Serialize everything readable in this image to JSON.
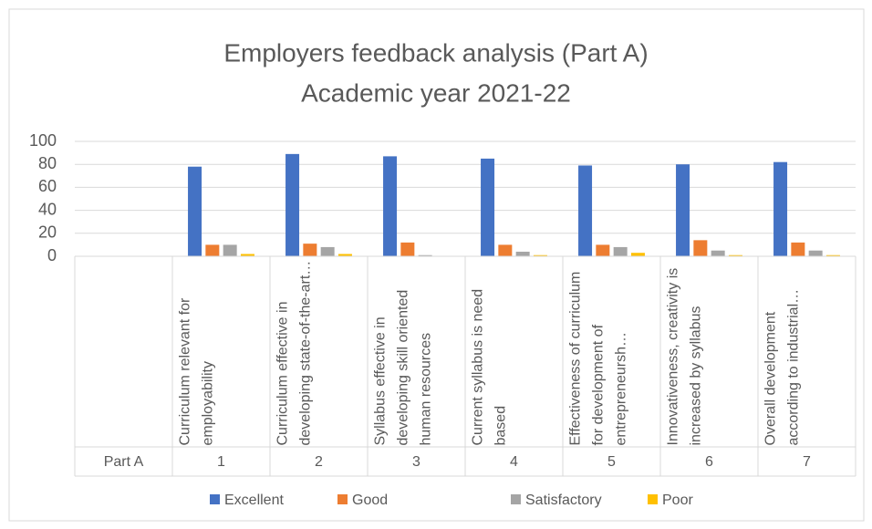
{
  "chart_data": {
    "type": "bar",
    "title": "Employers feedback analysis (Part A)",
    "subtitle": "Academic year 2021-22",
    "groups": [
      "Part A",
      "1",
      "2",
      "3",
      "4",
      "5",
      "6",
      "7"
    ],
    "categories": [
      null,
      "Curriculum relevant for employability",
      "Curriculum effective in developing state-of-the-art…",
      "Syllabus effective in developing skill oriented human resources",
      "Current syllabus is need based",
      "Effectiveness of curriculum for development of entrepreneursh…",
      "Innovativeness, creativity is increased by syllabus",
      "Overall development according to industrial…"
    ],
    "series": [
      {
        "name": "Excellent",
        "color": "#4472c4",
        "values": [
          null,
          78,
          89,
          87,
          85,
          79,
          80,
          82
        ]
      },
      {
        "name": "Good",
        "color": "#ed7d31",
        "values": [
          null,
          10,
          11,
          12,
          10,
          10,
          14,
          12
        ]
      },
      {
        "name": "Satisfactory",
        "color": "#a5a5a5",
        "values": [
          null,
          10,
          8,
          1,
          4,
          8,
          5,
          5
        ]
      },
      {
        "name": "Poor",
        "color": "#ffc000",
        "values": [
          null,
          2,
          2,
          0,
          1,
          3,
          1,
          1
        ]
      }
    ],
    "ylim": [
      0,
      100
    ],
    "yticks": [
      0,
      20,
      40,
      60,
      80,
      100
    ],
    "grid": true,
    "legend": "bottom"
  }
}
